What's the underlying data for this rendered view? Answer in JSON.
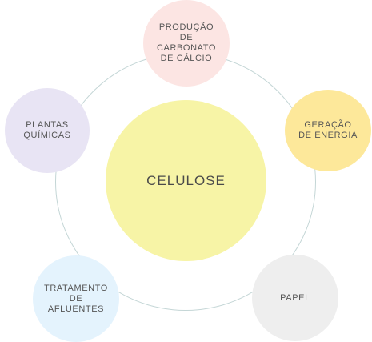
{
  "diagram": {
    "center": {
      "label": "CELULOSE",
      "color": "#f7f4a6"
    },
    "nodes": [
      {
        "key": "top",
        "label": "PRODUÇÃO\nDE\nCARBONATO\nDE CÁLCIO",
        "color": "#fce5e3"
      },
      {
        "key": "right",
        "label": "GERAÇÃO\nDE ENERGIA",
        "color": "#fde89a"
      },
      {
        "key": "bottom-right",
        "label": "PAPEL",
        "color": "#eeeeee"
      },
      {
        "key": "bottom-left",
        "label": "TRATAMENTO\nDE\nAFLUENTES",
        "color": "#e4f3fd"
      },
      {
        "key": "left",
        "label": "PLANTAS\nQUÍMICAS",
        "color": "#e8e4f4"
      }
    ],
    "ring_color": "#c4d6d6"
  }
}
